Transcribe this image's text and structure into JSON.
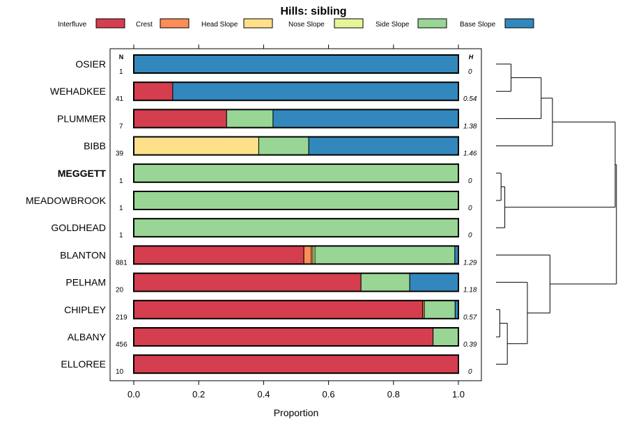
{
  "chart_data": {
    "type": "bar",
    "orientation": "horizontal-stacked",
    "title": "Hills: sibling",
    "xlabel": "Proportion",
    "ylabel": "",
    "xlim": [
      0,
      1
    ],
    "x_ticks": [
      "0.0",
      "0.2",
      "0.4",
      "0.6",
      "0.8",
      "1.0"
    ],
    "n_header": "N",
    "h_header": "H",
    "highlighted_category": "MEGGETT",
    "legend_position": "top",
    "legend": [
      {
        "name": "Interfluve",
        "color": "#d53e4f"
      },
      {
        "name": "Crest",
        "color": "#fc8d59"
      },
      {
        "name": "Head Slope",
        "color": "#fee08b"
      },
      {
        "name": "Nose Slope",
        "color": "#e6f598"
      },
      {
        "name": "Side Slope",
        "color": "#99d594"
      },
      {
        "name": "Base Slope",
        "color": "#3288bd"
      }
    ],
    "categories": [
      "OSIER",
      "WEHADKEE",
      "PLUMMER",
      "BIBB",
      "MEGGETT",
      "MEADOWBROOK",
      "GOLDHEAD",
      "BLANTON",
      "PELHAM",
      "CHIPLEY",
      "ALBANY",
      "ELLOREE"
    ],
    "N": [
      "1",
      "41",
      "7",
      "39",
      "1",
      "1",
      "1",
      "881",
      "20",
      "219",
      "456",
      "10"
    ],
    "H": [
      "0",
      "0.54",
      "1.38",
      "1.46",
      "0",
      "0",
      "0",
      "1.29",
      "1.18",
      "0.57",
      "0.39",
      "0"
    ],
    "series": [
      {
        "name": "Interfluve",
        "values": [
          0,
          0.12,
          0.286,
          0,
          0,
          0,
          0,
          0.524,
          0.7,
          0.89,
          0.922,
          1.0
        ]
      },
      {
        "name": "Crest",
        "values": [
          0,
          0,
          0,
          0,
          0,
          0,
          0,
          0.023,
          0,
          0.005,
          0,
          0
        ]
      },
      {
        "name": "Head Slope",
        "values": [
          0,
          0,
          0,
          0.385,
          0,
          0,
          0,
          0.005,
          0,
          0,
          0,
          0
        ]
      },
      {
        "name": "Nose Slope",
        "values": [
          0,
          0,
          0,
          0,
          0,
          0,
          0,
          0.006,
          0,
          0,
          0,
          0
        ]
      },
      {
        "name": "Side Slope",
        "values": [
          0,
          0,
          0.143,
          0.154,
          1.0,
          1.0,
          1.0,
          0.431,
          0.15,
          0.095,
          0.078,
          0
        ]
      },
      {
        "name": "Base Slope",
        "values": [
          1.0,
          0.88,
          0.571,
          0.461,
          0,
          0,
          0,
          0.011,
          0.15,
          0.01,
          0,
          0
        ]
      }
    ],
    "dendrogram": {
      "merges": [
        {
          "left": "OSIER",
          "right": "WEHADKEE",
          "height": 0.12
        },
        {
          "left": "M1",
          "right": "PLUMMER",
          "height": 0.36
        },
        {
          "left": "M2",
          "right": "BIBB",
          "height": 0.45
        },
        {
          "left": "MEGGETT",
          "right": "MEADOWBROOK",
          "height": 0.04
        },
        {
          "left": "M4",
          "right": "GOLDHEAD",
          "height": 0.07
        },
        {
          "left": "CHIPLEY",
          "right": "ALBANY",
          "height": 0.03
        },
        {
          "left": "M6",
          "right": "ELLOREE",
          "height": 0.09
        },
        {
          "left": "M7",
          "right": "PELHAM",
          "height": 0.25
        },
        {
          "left": "M8",
          "right": "BLANTON",
          "height": 0.43
        },
        {
          "left": "M3",
          "right": "M5",
          "height": 0.95
        },
        {
          "left": "M10",
          "right": "M9",
          "height": 0.96
        }
      ]
    }
  }
}
